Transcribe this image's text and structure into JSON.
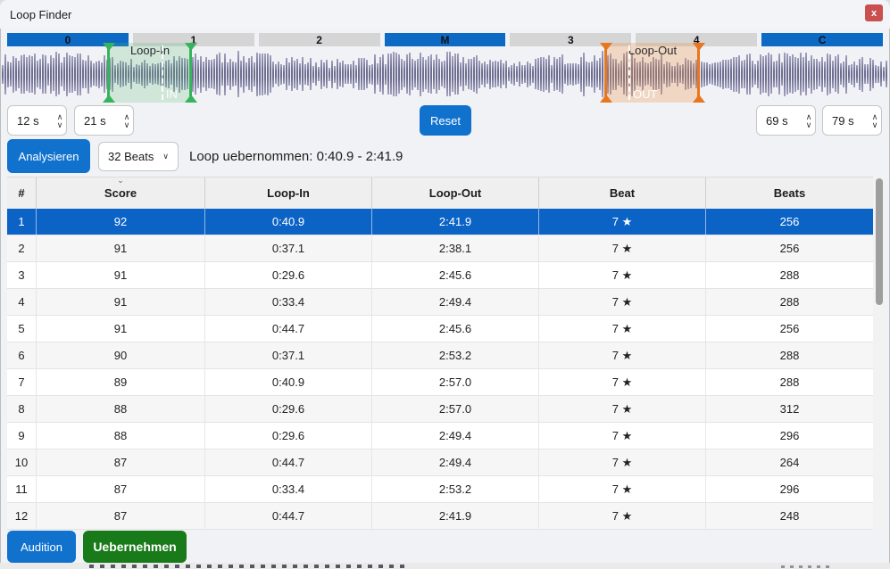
{
  "window": {
    "title": "Loop Finder",
    "close_label": "x"
  },
  "segments": [
    {
      "label": "0",
      "active": true
    },
    {
      "label": "1",
      "active": false
    },
    {
      "label": "2",
      "active": false
    },
    {
      "label": "M",
      "active": true
    },
    {
      "label": "3",
      "active": false
    },
    {
      "label": "4",
      "active": false
    },
    {
      "label": "C",
      "active": true
    }
  ],
  "waveform": {
    "loop_in_label": "Loop-In",
    "loop_in_tag": "IN",
    "loop_out_label": "Loop-Out",
    "loop_out_tag": "OUT"
  },
  "controls": {
    "loop_in_start": "12 s",
    "loop_in_end": "21 s",
    "reset_label": "Reset",
    "loop_out_start": "69 s",
    "loop_out_end": "79 s",
    "spin_up": "∧",
    "spin_down": "∨"
  },
  "analysis": {
    "analyze_label": "Analysieren",
    "beats_selected": "32 Beats",
    "dropdown_chevron": "∨",
    "status": "Loop uebernommen: 0:40.9 - 2:41.9"
  },
  "table": {
    "columns": [
      "#",
      "Score",
      "Loop-In",
      "Loop-Out",
      "Beat",
      "Beats"
    ],
    "sorted_column": "Score",
    "sort_indicator": "⌄",
    "star": "★",
    "rows": [
      {
        "num": "1",
        "score": "92",
        "loop_in": "0:40.9",
        "loop_out": "2:41.9",
        "beat": "7",
        "beats": "256",
        "selected": true
      },
      {
        "num": "2",
        "score": "91",
        "loop_in": "0:37.1",
        "loop_out": "2:38.1",
        "beat": "7",
        "beats": "256",
        "selected": false
      },
      {
        "num": "3",
        "score": "91",
        "loop_in": "0:29.6",
        "loop_out": "2:45.6",
        "beat": "7",
        "beats": "288",
        "selected": false
      },
      {
        "num": "4",
        "score": "91",
        "loop_in": "0:33.4",
        "loop_out": "2:49.4",
        "beat": "7",
        "beats": "288",
        "selected": false
      },
      {
        "num": "5",
        "score": "91",
        "loop_in": "0:44.7",
        "loop_out": "2:45.6",
        "beat": "7",
        "beats": "256",
        "selected": false
      },
      {
        "num": "6",
        "score": "90",
        "loop_in": "0:37.1",
        "loop_out": "2:53.2",
        "beat": "7",
        "beats": "288",
        "selected": false
      },
      {
        "num": "7",
        "score": "89",
        "loop_in": "0:40.9",
        "loop_out": "2:57.0",
        "beat": "7",
        "beats": "288",
        "selected": false
      },
      {
        "num": "8",
        "score": "88",
        "loop_in": "0:29.6",
        "loop_out": "2:57.0",
        "beat": "7",
        "beats": "312",
        "selected": false
      },
      {
        "num": "9",
        "score": "88",
        "loop_in": "0:29.6",
        "loop_out": "2:49.4",
        "beat": "7",
        "beats": "296",
        "selected": false
      },
      {
        "num": "10",
        "score": "87",
        "loop_in": "0:44.7",
        "loop_out": "2:49.4",
        "beat": "7",
        "beats": "264",
        "selected": false
      },
      {
        "num": "11",
        "score": "87",
        "loop_in": "0:33.4",
        "loop_out": "2:53.2",
        "beat": "7",
        "beats": "296",
        "selected": false
      },
      {
        "num": "12",
        "score": "87",
        "loop_in": "0:44.7",
        "loop_out": "2:41.9",
        "beat": "7",
        "beats": "248",
        "selected": false
      }
    ]
  },
  "footer": {
    "audition_label": "Audition",
    "apply_label": "Uebernehmen"
  },
  "colors": {
    "accent_blue": "#1172ce",
    "segment_active_blue": "#0d6ac4",
    "selected_row_blue": "#0b63c6",
    "apply_green": "#197a19",
    "close_red": "#c9504e",
    "loop_in_green": "#36b45c",
    "loop_out_orange": "#e8761f",
    "waveform_purple": "#6e6e92"
  }
}
